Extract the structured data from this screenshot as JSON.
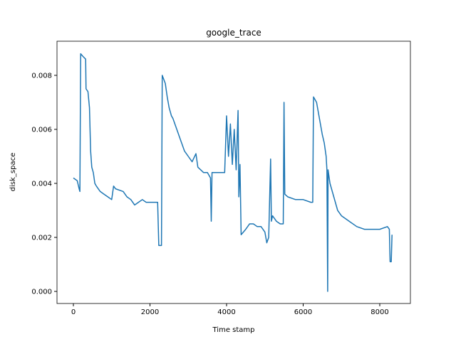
{
  "chart_data": {
    "type": "line",
    "title": "google_trace",
    "x_label": "Time stamp",
    "y_label": "disk_space",
    "xlim": [
      -428,
      8800
    ],
    "ylim": [
      -0.000447,
      0.009263
    ],
    "xticks": [
      0,
      2000,
      4000,
      6000,
      8000
    ],
    "yticks": [
      {
        "value": 0,
        "label": "0.000"
      },
      {
        "value": 0.002,
        "label": "0.002"
      },
      {
        "value": 0.004,
        "label": "0.004"
      },
      {
        "value": 0.006,
        "label": "0.006"
      },
      {
        "value": 0.008,
        "label": "0.008"
      }
    ],
    "grid": false,
    "x": [
      0,
      100,
      150,
      170,
      190,
      250,
      320,
      330,
      380,
      420,
      450,
      480,
      520,
      560,
      600,
      700,
      800,
      900,
      1000,
      1050,
      1100,
      1300,
      1400,
      1500,
      1600,
      1700,
      1800,
      1900,
      2000,
      2100,
      2200,
      2230,
      2300,
      2320,
      2400,
      2450,
      2500,
      2560,
      2600,
      2700,
      2800,
      2900,
      3000,
      3100,
      3200,
      3250,
      3400,
      3500,
      3580,
      3600,
      3620,
      3700,
      3800,
      3900,
      3950,
      4000,
      4050,
      4100,
      4150,
      4200,
      4250,
      4300,
      4320,
      4350,
      4380,
      4500,
      4600,
      4700,
      4800,
      4900,
      5000,
      5050,
      5100,
      5150,
      5170,
      5200,
      5300,
      5400,
      5480,
      5500,
      5520,
      5600,
      5800,
      6000,
      6200,
      6250,
      6270,
      6350,
      6400,
      6450,
      6500,
      6550,
      6600,
      6620,
      6640,
      6650,
      6700,
      6800,
      6900,
      7000,
      7200,
      7400,
      7600,
      7800,
      8000,
      8200,
      8250,
      8270,
      8300,
      8320
    ],
    "series": [
      {
        "name": "disk_space",
        "color": "#1f77b4",
        "values": [
          0.0042,
          0.0041,
          0.0038,
          0.0037,
          0.0088,
          0.0087,
          0.0086,
          0.0075,
          0.0074,
          0.0068,
          0.0052,
          0.0046,
          0.0044,
          0.004,
          0.0039,
          0.0037,
          0.0036,
          0.0035,
          0.0034,
          0.0039,
          0.0038,
          0.0037,
          0.0035,
          0.0034,
          0.0032,
          0.0033,
          0.0034,
          0.0033,
          0.0033,
          0.0033,
          0.0033,
          0.0017,
          0.0017,
          0.008,
          0.0077,
          0.0072,
          0.0068,
          0.0065,
          0.0064,
          0.006,
          0.0056,
          0.0052,
          0.005,
          0.0048,
          0.0051,
          0.0046,
          0.0044,
          0.0044,
          0.0042,
          0.0026,
          0.0044,
          0.0044,
          0.0044,
          0.0044,
          0.0044,
          0.0065,
          0.005,
          0.0062,
          0.0047,
          0.006,
          0.0045,
          0.0067,
          0.0035,
          0.0047,
          0.0021,
          0.0023,
          0.0025,
          0.0025,
          0.0024,
          0.0024,
          0.0022,
          0.0018,
          0.002,
          0.0049,
          0.0026,
          0.0028,
          0.0026,
          0.0025,
          0.0025,
          0.007,
          0.0036,
          0.0035,
          0.0034,
          0.0034,
          0.0033,
          0.0033,
          0.0072,
          0.007,
          0.0066,
          0.0062,
          0.0058,
          0.0055,
          0.005,
          0.0045,
          0.0,
          0.0045,
          0.004,
          0.0035,
          0.003,
          0.0028,
          0.0026,
          0.0024,
          0.0023,
          0.0023,
          0.0023,
          0.0024,
          0.0023,
          0.0011,
          0.0011,
          0.0021
        ]
      }
    ]
  }
}
